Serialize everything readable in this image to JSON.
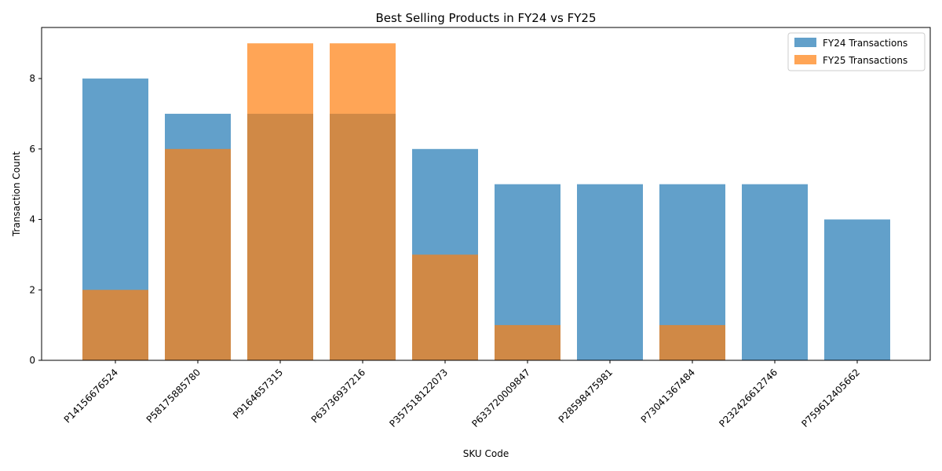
{
  "chart_data": {
    "type": "bar",
    "title": "Best Selling Products in FY24 vs FY25",
    "xlabel": "SKU Code",
    "ylabel": "Transaction Count",
    "ylim": [
      0,
      9.45
    ],
    "yticks": [
      0,
      2,
      4,
      6,
      8
    ],
    "grid": false,
    "legend_position": "top-right",
    "categories": [
      "P14156676524",
      "P58175885780",
      "P9164657315",
      "P63736937216",
      "P357518122073",
      "P633720009847",
      "P28598475981",
      "P73041367484",
      "P232426612746",
      "P759612405662"
    ],
    "series": [
      {
        "name": "FY24 Transactions",
        "color": "#1f77b4",
        "values": [
          8,
          7,
          7,
          7,
          6,
          5,
          5,
          5,
          5,
          4
        ]
      },
      {
        "name": "FY25 Transactions",
        "color": "#ff7f0e",
        "values": [
          2,
          6,
          9,
          9,
          3,
          1,
          0,
          1,
          0,
          0
        ]
      }
    ]
  }
}
